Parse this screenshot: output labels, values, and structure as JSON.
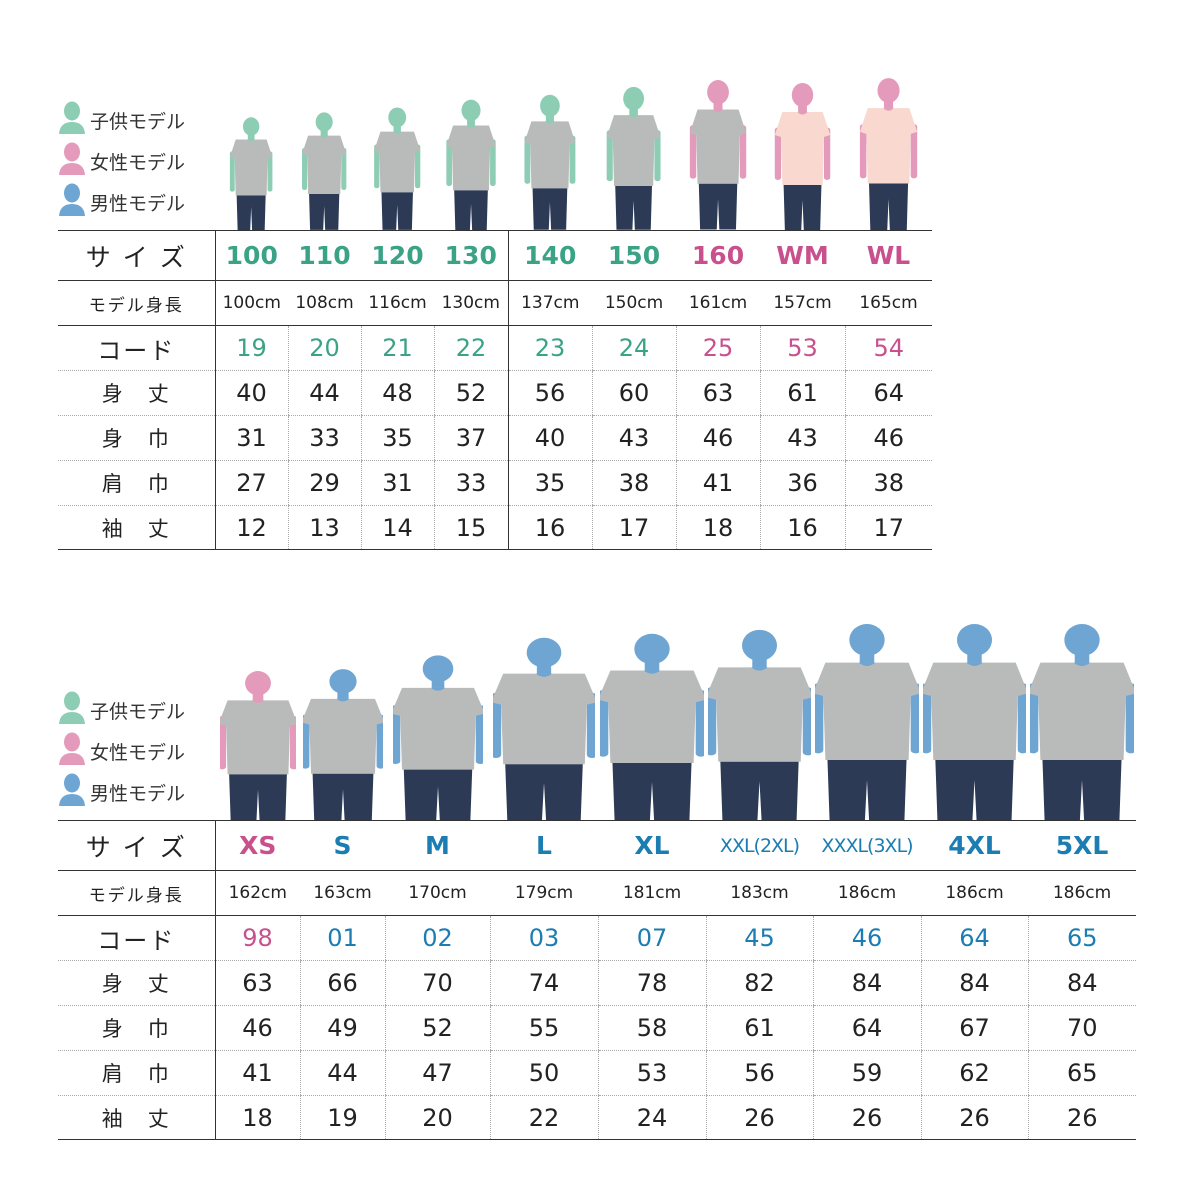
{
  "colors": {
    "child_text": "#3aa386",
    "child_fig": "#8dcdb4",
    "female_text": "#c8508c",
    "female_fig": "#e39abb",
    "male_text": "#1b7db2",
    "male_fig": "#6ea5d2",
    "shirt_gray": "#b9bbbb",
    "shirt_pink": "#f8d8cf",
    "jeans": "#2c3a55"
  },
  "legend": [
    {
      "label": "子供モデル",
      "model": "child"
    },
    {
      "label": "女性モデル",
      "model": "female"
    },
    {
      "label": "男性モデル",
      "model": "male"
    }
  ],
  "row_labels": {
    "size": "サ イ ズ",
    "height": "モデル身長",
    "code": "コード",
    "length": "身　丈",
    "width": "身　巾",
    "shoulder": "肩　巾",
    "sleeve": "袖　丈"
  },
  "tables": [
    {
      "columns": [
        {
          "size": "100",
          "height": "100cm",
          "code": "19",
          "length": "40",
          "width": "31",
          "shoulder": "27",
          "sleeve": "12",
          "model": "child",
          "shirt": "gray"
        },
        {
          "size": "110",
          "height": "108cm",
          "code": "20",
          "length": "44",
          "width": "33",
          "shoulder": "29",
          "sleeve": "13",
          "model": "child",
          "shirt": "gray"
        },
        {
          "size": "120",
          "height": "116cm",
          "code": "21",
          "length": "48",
          "width": "35",
          "shoulder": "31",
          "sleeve": "14",
          "model": "child",
          "shirt": "gray"
        },
        {
          "size": "130",
          "height": "130cm",
          "code": "22",
          "length": "52",
          "width": "37",
          "shoulder": "33",
          "sleeve": "15",
          "model": "child",
          "shirt": "gray"
        },
        {
          "size": "140",
          "height": "137cm",
          "code": "23",
          "length": "56",
          "width": "40",
          "shoulder": "35",
          "sleeve": "16",
          "model": "child",
          "shirt": "gray"
        },
        {
          "size": "150",
          "height": "150cm",
          "code": "24",
          "length": "60",
          "width": "43",
          "shoulder": "38",
          "sleeve": "17",
          "model": "child",
          "shirt": "gray"
        },
        {
          "size": "160",
          "height": "161cm",
          "code": "25",
          "length": "63",
          "width": "46",
          "shoulder": "41",
          "sleeve": "18",
          "model": "female",
          "shirt": "gray"
        },
        {
          "size": "WM",
          "height": "157cm",
          "code": "53",
          "length": "61",
          "width": "43",
          "shoulder": "36",
          "sleeve": "16",
          "model": "female",
          "shirt": "pink"
        },
        {
          "size": "WL",
          "height": "165cm",
          "code": "54",
          "length": "64",
          "width": "46",
          "shoulder": "38",
          "sleeve": "17",
          "model": "female",
          "shirt": "pink"
        }
      ]
    },
    {
      "columns": [
        {
          "size": "XS",
          "height": "162cm",
          "code": "98",
          "length": "63",
          "width": "46",
          "shoulder": "41",
          "sleeve": "18",
          "model": "female",
          "shirt": "gray"
        },
        {
          "size": "S",
          "height": "163cm",
          "code": "01",
          "length": "66",
          "width": "49",
          "shoulder": "44",
          "sleeve": "19",
          "model": "male",
          "shirt": "gray"
        },
        {
          "size": "M",
          "height": "170cm",
          "code": "02",
          "length": "70",
          "width": "52",
          "shoulder": "47",
          "sleeve": "20",
          "model": "male",
          "shirt": "gray"
        },
        {
          "size": "L",
          "height": "179cm",
          "code": "03",
          "length": "74",
          "width": "55",
          "shoulder": "50",
          "sleeve": "22",
          "model": "male",
          "shirt": "gray"
        },
        {
          "size": "XL",
          "height": "181cm",
          "code": "07",
          "length": "78",
          "width": "58",
          "shoulder": "53",
          "sleeve": "24",
          "model": "male",
          "shirt": "gray"
        },
        {
          "size": "XXL(2XL)",
          "height": "183cm",
          "code": "45",
          "length": "82",
          "width": "61",
          "shoulder": "56",
          "sleeve": "26",
          "model": "male",
          "shirt": "gray"
        },
        {
          "size": "XXXL(3XL)",
          "height": "186cm",
          "code": "46",
          "length": "84",
          "width": "64",
          "shoulder": "59",
          "sleeve": "26",
          "model": "male",
          "shirt": "gray"
        },
        {
          "size": "4XL",
          "height": "186cm",
          "code": "64",
          "length": "84",
          "width": "67",
          "shoulder": "62",
          "sleeve": "26",
          "model": "male",
          "shirt": "gray"
        },
        {
          "size": "5XL",
          "height": "186cm",
          "code": "65",
          "length": "84",
          "width": "70",
          "shoulder": "65",
          "sleeve": "26",
          "model": "male",
          "shirt": "gray"
        }
      ]
    }
  ]
}
